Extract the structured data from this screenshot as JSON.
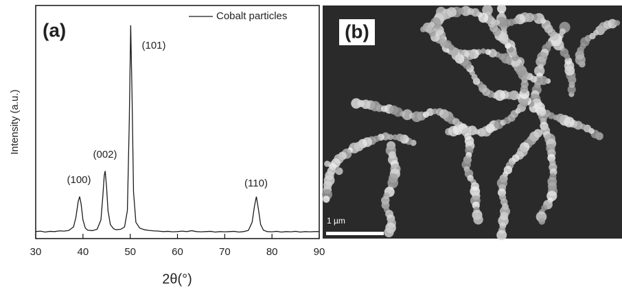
{
  "chart_data": {
    "type": "line",
    "x_label": "2θ(°)",
    "y_label": "Intensity (a.u.)",
    "panel_a_label": "(a)",
    "panel_b_label": "(b)",
    "scale_bar_label": "1 µm",
    "annotations": [
      "(100)",
      "(002)",
      "(101)",
      "(110)"
    ],
    "x": [
      30,
      31,
      32,
      33,
      34,
      35,
      36,
      37,
      38,
      38.5,
      39,
      39.3,
      39.6,
      40,
      40.5,
      41,
      42,
      43,
      43.8,
      44.2,
      44.5,
      44.7,
      45,
      45.3,
      45.8,
      46.5,
      47,
      48,
      48.8,
      49.4,
      49.8,
      50.1,
      50.4,
      50.7,
      51.2,
      52,
      53,
      54,
      55,
      56,
      57,
      58,
      59,
      60,
      61,
      62,
      63,
      64,
      65,
      66,
      67,
      68,
      69,
      70,
      71,
      72,
      73,
      74,
      75,
      75.8,
      76.3,
      76.7,
      77.1,
      77.6,
      78.2,
      79,
      80,
      81,
      82,
      83,
      84,
      85,
      86,
      87,
      88,
      89,
      90
    ],
    "series": [
      {
        "name": "Cobalt particles",
        "color": "#1a1a1a",
        "values": [
          3,
          3.2,
          2.8,
          3.1,
          3,
          3.3,
          3.2,
          3.5,
          5,
          9,
          16,
          18,
          15,
          8,
          4.5,
          3.6,
          3.4,
          4,
          8,
          18,
          27,
          29,
          22,
          12,
          6,
          4.2,
          3.8,
          4,
          5,
          12,
          50,
          91.5,
          60,
          20,
          7,
          4.5,
          3.8,
          3.5,
          3.3,
          3.2,
          3,
          3.1,
          2.9,
          3,
          3.2,
          3,
          3.4,
          3,
          2.9,
          3,
          3.1,
          2.8,
          3,
          2.9,
          3,
          3.1,
          2.8,
          3,
          3.5,
          7,
          14,
          18,
          13,
          6,
          3.6,
          3,
          2.9,
          3.1,
          2.8,
          3,
          2.9,
          3.1,
          2.8,
          3,
          2.9,
          3,
          3
        ]
      }
    ],
    "xlim": [
      30,
      90
    ],
    "xticks": [
      30,
      40,
      50,
      60,
      70,
      80,
      90
    ],
    "ylim": [
      0,
      100
    ],
    "legend": "upper right"
  }
}
